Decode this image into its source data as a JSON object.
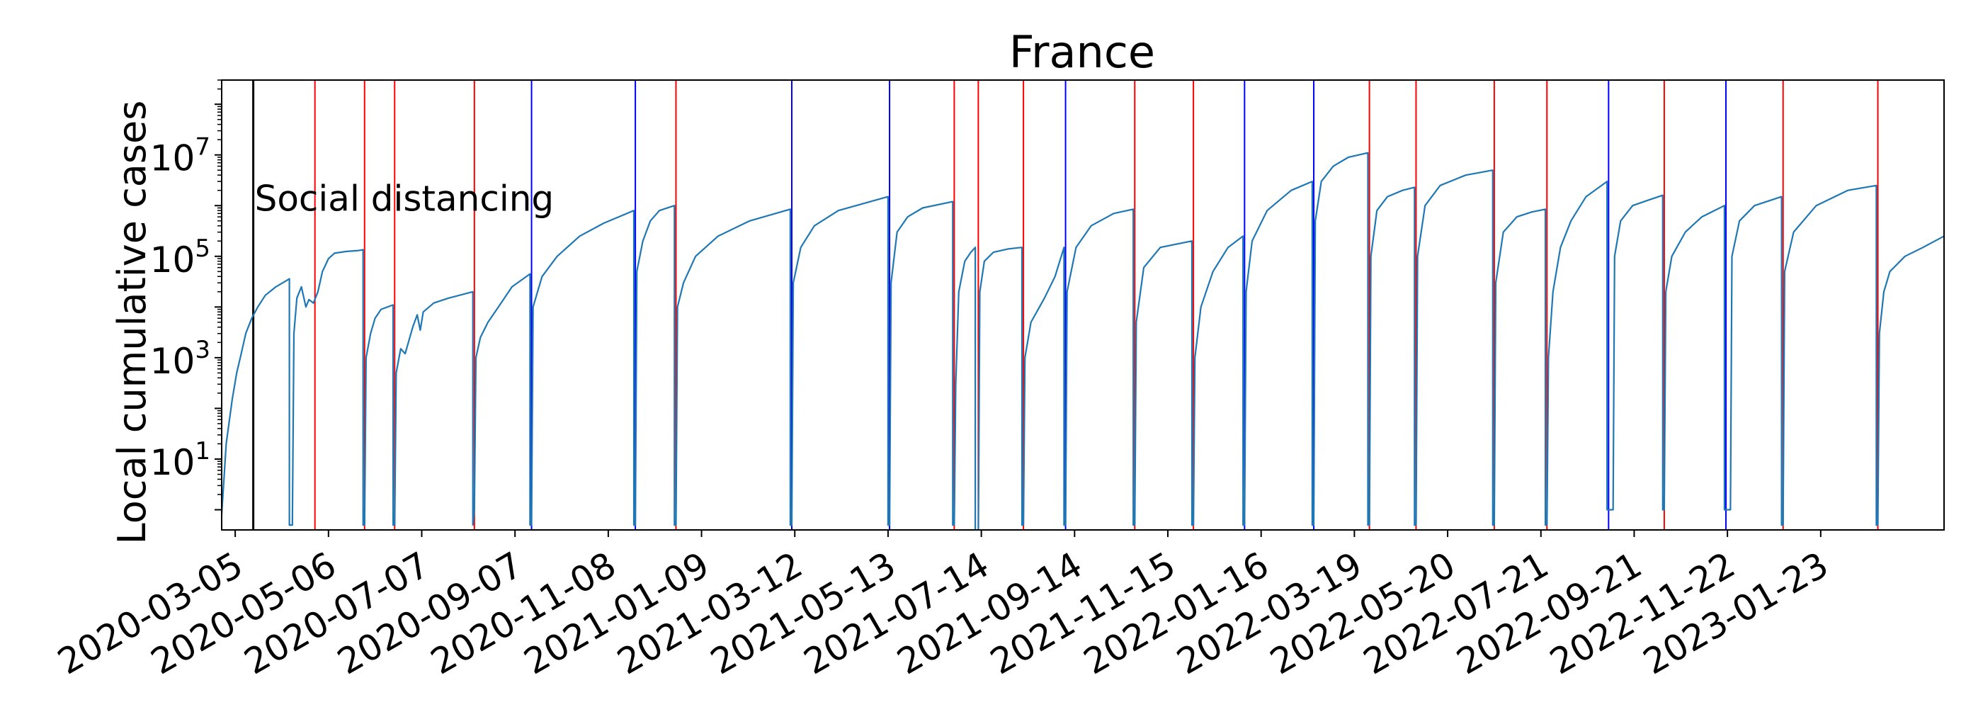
{
  "chart_data": {
    "type": "line",
    "title": "France",
    "xlabel": "",
    "ylabel": "Local cumulative cases",
    "yscale": "log",
    "ylim": [
      0.4,
      300000000.0
    ],
    "xlim": [
      "2020-02-25",
      "2023-04-15"
    ],
    "x_ticks": [
      "2020-03-05",
      "2020-05-06",
      "2020-07-07",
      "2020-09-07",
      "2020-11-08",
      "2021-01-09",
      "2021-03-12",
      "2021-05-13",
      "2021-07-14",
      "2021-09-14",
      "2021-11-15",
      "2022-01-16",
      "2022-03-19",
      "2022-05-20",
      "2022-07-21",
      "2022-09-21",
      "2022-11-22",
      "2023-01-23"
    ],
    "y_ticks": [
      {
        "value": 10,
        "base": "10",
        "exp": "1"
      },
      {
        "value": 1000,
        "base": "10",
        "exp": "3"
      },
      {
        "value": 100000,
        "base": "10",
        "exp": "5"
      },
      {
        "value": 10000000,
        "base": "10",
        "exp": "7"
      }
    ],
    "annotations": [
      {
        "text": "Social distancing",
        "date": "2020-03-17",
        "value": 1500000,
        "color": "#000000"
      }
    ],
    "vlines": [
      {
        "date": "2020-03-17",
        "color": "#000000"
      },
      {
        "date": "2020-04-27",
        "color": "#ff0000"
      },
      {
        "date": "2020-05-30",
        "color": "#ff0000"
      },
      {
        "date": "2020-06-19",
        "color": "#ff0000"
      },
      {
        "date": "2020-08-11",
        "color": "#ff0000"
      },
      {
        "date": "2020-09-18",
        "color": "#0000ff"
      },
      {
        "date": "2020-11-26",
        "color": "#0000ff"
      },
      {
        "date": "2020-12-23",
        "color": "#ff0000"
      },
      {
        "date": "2021-03-10",
        "color": "#0000ff"
      },
      {
        "date": "2021-05-14",
        "color": "#0000ff"
      },
      {
        "date": "2021-06-26",
        "color": "#ff0000"
      },
      {
        "date": "2021-07-12",
        "color": "#ff0000"
      },
      {
        "date": "2021-08-11",
        "color": "#ff0000"
      },
      {
        "date": "2021-09-08",
        "color": "#0000ff"
      },
      {
        "date": "2021-10-24",
        "color": "#ff0000"
      },
      {
        "date": "2021-12-02",
        "color": "#ff0000"
      },
      {
        "date": "2022-01-05",
        "color": "#0000ff"
      },
      {
        "date": "2022-02-20",
        "color": "#0000ff"
      },
      {
        "date": "2022-03-29",
        "color": "#ff0000"
      },
      {
        "date": "2022-04-29",
        "color": "#ff0000"
      },
      {
        "date": "2022-06-20",
        "color": "#ff0000"
      },
      {
        "date": "2022-07-25",
        "color": "#ff0000"
      },
      {
        "date": "2022-09-04",
        "color": "#0000ff"
      },
      {
        "date": "2022-10-11",
        "color": "#ff0000"
      },
      {
        "date": "2022-11-21",
        "color": "#0000ff"
      },
      {
        "date": "2022-12-29",
        "color": "#ff0000"
      },
      {
        "date": "2023-03-02",
        "color": "#ff0000"
      }
    ],
    "series": [
      {
        "color": "#1f77b4",
        "points": [
          [
            "2020-02-25",
            0.8
          ],
          [
            "2020-02-28",
            20
          ],
          [
            "2020-03-03",
            150
          ],
          [
            "2020-03-06",
            500
          ],
          [
            "2020-03-09",
            1200
          ],
          [
            "2020-03-12",
            3000
          ],
          [
            "2020-03-16",
            6000
          ],
          [
            "2020-03-20",
            10000
          ],
          [
            "2020-03-25",
            17000
          ],
          [
            "2020-04-01",
            25000
          ],
          [
            "2020-04-08",
            33000
          ],
          [
            "2020-04-10",
            36000
          ],
          [
            "2020-04-10",
            0.5
          ],
          [
            "2020-04-12",
            0.5
          ],
          [
            "2020-04-13",
            3000
          ],
          [
            "2020-04-15",
            15000
          ],
          [
            "2020-04-18",
            25000
          ],
          [
            "2020-04-21",
            10000
          ],
          [
            "2020-04-23",
            14000
          ],
          [
            "2020-04-26",
            12000
          ],
          [
            "2020-04-29",
            20000
          ],
          [
            "2020-05-02",
            50000
          ],
          [
            "2020-05-06",
            90000
          ],
          [
            "2020-05-10",
            115000
          ],
          [
            "2020-05-18",
            125000
          ],
          [
            "2020-05-26",
            130000
          ],
          [
            "2020-05-29",
            135000
          ],
          [
            "2020-05-29",
            0.5
          ],
          [
            "2020-05-30",
            0.5
          ],
          [
            "2020-05-31",
            1000
          ],
          [
            "2020-06-03",
            3000
          ],
          [
            "2020-06-06",
            6000
          ],
          [
            "2020-06-10",
            9000
          ],
          [
            "2020-06-18",
            11000
          ],
          [
            "2020-06-18",
            0.5
          ],
          [
            "2020-06-19",
            0.5
          ],
          [
            "2020-06-20",
            500
          ],
          [
            "2020-06-23",
            1500
          ],
          [
            "2020-06-26",
            1200
          ],
          [
            "2020-07-01",
            4000
          ],
          [
            "2020-07-04",
            7000
          ],
          [
            "2020-07-06",
            3500
          ],
          [
            "2020-07-08",
            8000
          ],
          [
            "2020-07-15",
            12000
          ],
          [
            "2020-07-25",
            15000
          ],
          [
            "2020-08-10",
            20000
          ],
          [
            "2020-08-10",
            0.5
          ],
          [
            "2020-08-11",
            1
          ],
          [
            "2020-08-12",
            1000
          ],
          [
            "2020-08-15",
            2500
          ],
          [
            "2020-08-20",
            5000
          ],
          [
            "2020-08-27",
            10000
          ],
          [
            "2020-09-05",
            25000
          ],
          [
            "2020-09-17",
            45000
          ],
          [
            "2020-09-17",
            0.5
          ],
          [
            "2020-09-18",
            0.5
          ],
          [
            "2020-09-19",
            10000
          ],
          [
            "2020-09-25",
            40000
          ],
          [
            "2020-10-05",
            100000
          ],
          [
            "2020-10-20",
            250000
          ],
          [
            "2020-11-05",
            450000
          ],
          [
            "2020-11-25",
            800000
          ],
          [
            "2020-11-25",
            0.5
          ],
          [
            "2020-11-26",
            0.5
          ],
          [
            "2020-11-27",
            50000
          ],
          [
            "2020-12-01",
            200000
          ],
          [
            "2020-12-06",
            500000
          ],
          [
            "2020-12-12",
            800000
          ],
          [
            "2020-12-22",
            1000000
          ],
          [
            "2020-12-22",
            0.5
          ],
          [
            "2020-12-23",
            0.5
          ],
          [
            "2020-12-24",
            10000
          ],
          [
            "2020-12-28",
            30000
          ],
          [
            "2021-01-05",
            100000
          ],
          [
            "2021-01-20",
            250000
          ],
          [
            "2021-02-10",
            500000
          ],
          [
            "2021-03-09",
            850000
          ],
          [
            "2021-03-09",
            0.5
          ],
          [
            "2021-03-10",
            0.5
          ],
          [
            "2021-03-11",
            30000
          ],
          [
            "2021-03-16",
            150000
          ],
          [
            "2021-03-25",
            400000
          ],
          [
            "2021-04-10",
            800000
          ],
          [
            "2021-05-13",
            1500000
          ],
          [
            "2021-05-13",
            0.5
          ],
          [
            "2021-05-14",
            0.5
          ],
          [
            "2021-05-15",
            30000
          ],
          [
            "2021-05-19",
            300000
          ],
          [
            "2021-05-26",
            600000
          ],
          [
            "2021-06-05",
            900000
          ],
          [
            "2021-06-25",
            1200000
          ],
          [
            "2021-06-25",
            0.5
          ],
          [
            "2021-06-26",
            0.5
          ],
          [
            "2021-06-27",
            300
          ],
          [
            "2021-06-29",
            20000
          ],
          [
            "2021-07-03",
            80000
          ],
          [
            "2021-07-07",
            120000
          ],
          [
            "2021-07-10",
            150000
          ],
          [
            "2021-07-10",
            0.3
          ],
          [
            "2021-07-12",
            0.3
          ],
          [
            "2021-07-13",
            20000
          ],
          [
            "2021-07-16",
            80000
          ],
          [
            "2021-07-22",
            120000
          ],
          [
            "2021-08-01",
            140000
          ],
          [
            "2021-08-10",
            150000
          ],
          [
            "2021-08-10",
            0.5
          ],
          [
            "2021-08-11",
            0.5
          ],
          [
            "2021-08-12",
            1000
          ],
          [
            "2021-08-16",
            5000
          ],
          [
            "2021-08-25",
            15000
          ],
          [
            "2021-09-01",
            40000
          ],
          [
            "2021-09-07",
            150000
          ],
          [
            "2021-09-07",
            0.5
          ],
          [
            "2021-09-08",
            0.5
          ],
          [
            "2021-09-09",
            20000
          ],
          [
            "2021-09-15",
            150000
          ],
          [
            "2021-09-25",
            400000
          ],
          [
            "2021-10-10",
            700000
          ],
          [
            "2021-10-23",
            850000
          ],
          [
            "2021-10-23",
            0.5
          ],
          [
            "2021-10-24",
            0.5
          ],
          [
            "2021-10-25",
            5000
          ],
          [
            "2021-10-30",
            60000
          ],
          [
            "2021-11-10",
            150000
          ],
          [
            "2021-12-01",
            200000
          ],
          [
            "2021-12-01",
            0.5
          ],
          [
            "2021-12-02",
            0.5
          ],
          [
            "2021-12-03",
            1000
          ],
          [
            "2021-12-07",
            10000
          ],
          [
            "2021-12-15",
            50000
          ],
          [
            "2021-12-25",
            150000
          ],
          [
            "2022-01-04",
            250000
          ],
          [
            "2022-01-04",
            0.5
          ],
          [
            "2022-01-05",
            0.5
          ],
          [
            "2022-01-06",
            20000
          ],
          [
            "2022-01-10",
            200000
          ],
          [
            "2022-01-20",
            800000
          ],
          [
            "2022-02-05",
            2000000
          ],
          [
            "2022-02-19",
            3000000
          ],
          [
            "2022-02-19",
            0.5
          ],
          [
            "2022-02-20",
            0.5
          ],
          [
            "2022-02-21",
            500000
          ],
          [
            "2022-02-25",
            3000000
          ],
          [
            "2022-03-05",
            6000000
          ],
          [
            "2022-03-15",
            9000000
          ],
          [
            "2022-03-28",
            11000000
          ],
          [
            "2022-03-28",
            0.5
          ],
          [
            "2022-03-29",
            0.5
          ],
          [
            "2022-03-30",
            100000
          ],
          [
            "2022-04-03",
            800000
          ],
          [
            "2022-04-10",
            1500000
          ],
          [
            "2022-04-20",
            2000000
          ],
          [
            "2022-04-28",
            2300000
          ],
          [
            "2022-04-28",
            0.5
          ],
          [
            "2022-04-29",
            0.5
          ],
          [
            "2022-04-30",
            100000
          ],
          [
            "2022-05-05",
            1000000
          ],
          [
            "2022-05-15",
            2500000
          ],
          [
            "2022-06-01",
            4000000
          ],
          [
            "2022-06-19",
            5000000
          ],
          [
            "2022-06-19",
            0.5
          ],
          [
            "2022-06-20",
            0.5
          ],
          [
            "2022-06-21",
            30000
          ],
          [
            "2022-06-26",
            300000
          ],
          [
            "2022-07-05",
            600000
          ],
          [
            "2022-07-15",
            750000
          ],
          [
            "2022-07-24",
            850000
          ],
          [
            "2022-07-24",
            0.5
          ],
          [
            "2022-07-25",
            0.5
          ],
          [
            "2022-07-26",
            1000
          ],
          [
            "2022-07-29",
            20000
          ],
          [
            "2022-08-03",
            150000
          ],
          [
            "2022-08-10",
            500000
          ],
          [
            "2022-08-20",
            1500000
          ],
          [
            "2022-09-03",
            3000000
          ],
          [
            "2022-09-03",
            1
          ],
          [
            "2022-09-07",
            1
          ],
          [
            "2022-09-08",
            100000
          ],
          [
            "2022-09-12",
            500000
          ],
          [
            "2022-09-20",
            1000000
          ],
          [
            "2022-10-01",
            1300000
          ],
          [
            "2022-10-10",
            1600000
          ],
          [
            "2022-10-10",
            1
          ],
          [
            "2022-10-11",
            1
          ],
          [
            "2022-10-12",
            20000
          ],
          [
            "2022-10-16",
            100000
          ],
          [
            "2022-10-25",
            300000
          ],
          [
            "2022-11-05",
            600000
          ],
          [
            "2022-11-20",
            1000000
          ],
          [
            "2022-11-20",
            1
          ],
          [
            "2022-11-24",
            1
          ],
          [
            "2022-11-25",
            100000
          ],
          [
            "2022-11-30",
            500000
          ],
          [
            "2022-12-10",
            1000000
          ],
          [
            "2022-12-28",
            1500000
          ],
          [
            "2022-12-28",
            0.5
          ],
          [
            "2022-12-29",
            0.5
          ],
          [
            "2022-12-30",
            50000
          ],
          [
            "2023-01-05",
            300000
          ],
          [
            "2023-01-20",
            1000000
          ],
          [
            "2023-02-10",
            2000000
          ],
          [
            "2023-03-01",
            2500000
          ],
          [
            "2023-03-01",
            0.5
          ],
          [
            "2023-03-02",
            0.5
          ],
          [
            "2023-03-03",
            3000
          ],
          [
            "2023-03-06",
            20000
          ],
          [
            "2023-03-10",
            50000
          ],
          [
            "2023-03-20",
            100000
          ],
          [
            "2023-04-01",
            150000
          ],
          [
            "2023-04-15",
            250000
          ]
        ]
      }
    ]
  }
}
